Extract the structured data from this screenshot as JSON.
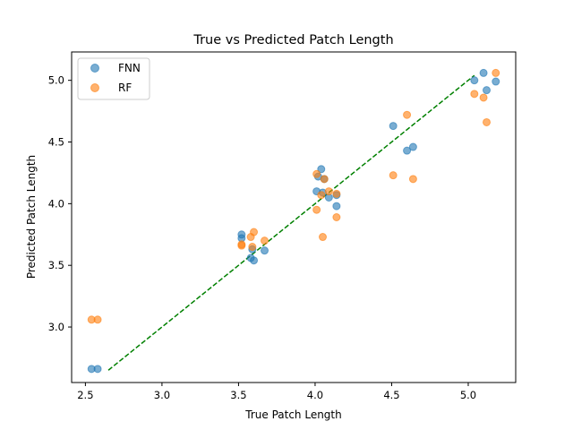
{
  "chart_data": {
    "type": "scatter",
    "title": "True vs Predicted Patch Length",
    "xlabel": "True Patch Length",
    "ylabel": "Predicted Patch Length",
    "xlim": [
      2.41,
      5.31
    ],
    "ylim": [
      2.55,
      5.23
    ],
    "xticks": [
      2.5,
      3.0,
      3.5,
      4.0,
      4.5,
      5.0
    ],
    "yticks": [
      3.0,
      3.5,
      4.0,
      4.5,
      5.0
    ],
    "xtick_labels": [
      "2.5",
      "3.0",
      "3.5",
      "4.0",
      "4.5",
      "5.0"
    ],
    "ytick_labels": [
      "3.0",
      "3.5",
      "4.0",
      "4.5",
      "5.0"
    ],
    "grid": false,
    "legend_position": "top-left",
    "series": [
      {
        "name": "FNN",
        "color": "#1f77b4",
        "points": [
          [
            2.54,
            2.66
          ],
          [
            2.58,
            2.66
          ],
          [
            3.52,
            3.75
          ],
          [
            3.52,
            3.72
          ],
          [
            3.58,
            3.56
          ],
          [
            3.6,
            3.54
          ],
          [
            3.67,
            3.62
          ],
          [
            3.59,
            3.63
          ],
          [
            4.01,
            4.1
          ],
          [
            4.02,
            4.22
          ],
          [
            4.04,
            4.28
          ],
          [
            4.05,
            4.09
          ],
          [
            4.06,
            4.2
          ],
          [
            4.09,
            4.05
          ],
          [
            4.14,
            4.07
          ],
          [
            4.14,
            3.98
          ],
          [
            4.51,
            4.63
          ],
          [
            4.6,
            4.43
          ],
          [
            4.64,
            4.46
          ],
          [
            5.04,
            5.0
          ],
          [
            5.1,
            5.06
          ],
          [
            5.12,
            4.92
          ],
          [
            5.18,
            4.99
          ]
        ]
      },
      {
        "name": "RF",
        "color": "#ff7f0e",
        "points": [
          [
            2.54,
            3.06
          ],
          [
            2.58,
            3.06
          ],
          [
            3.52,
            3.67
          ],
          [
            3.52,
            3.66
          ],
          [
            3.58,
            3.73
          ],
          [
            3.6,
            3.77
          ],
          [
            3.67,
            3.7
          ],
          [
            3.59,
            3.65
          ],
          [
            4.01,
            3.95
          ],
          [
            4.01,
            4.24
          ],
          [
            4.04,
            4.07
          ],
          [
            4.05,
            3.73
          ],
          [
            4.06,
            4.2
          ],
          [
            4.09,
            4.1
          ],
          [
            4.14,
            4.08
          ],
          [
            4.14,
            3.89
          ],
          [
            4.51,
            4.23
          ],
          [
            4.6,
            4.72
          ],
          [
            4.64,
            4.2
          ],
          [
            5.04,
            4.89
          ],
          [
            5.1,
            4.86
          ],
          [
            5.12,
            4.66
          ],
          [
            5.18,
            5.06
          ]
        ]
      }
    ],
    "reference_line": {
      "style": "dashed",
      "color": "#008000",
      "points": [
        [
          2.65,
          2.65
        ],
        [
          5.04,
          5.04
        ]
      ]
    }
  }
}
